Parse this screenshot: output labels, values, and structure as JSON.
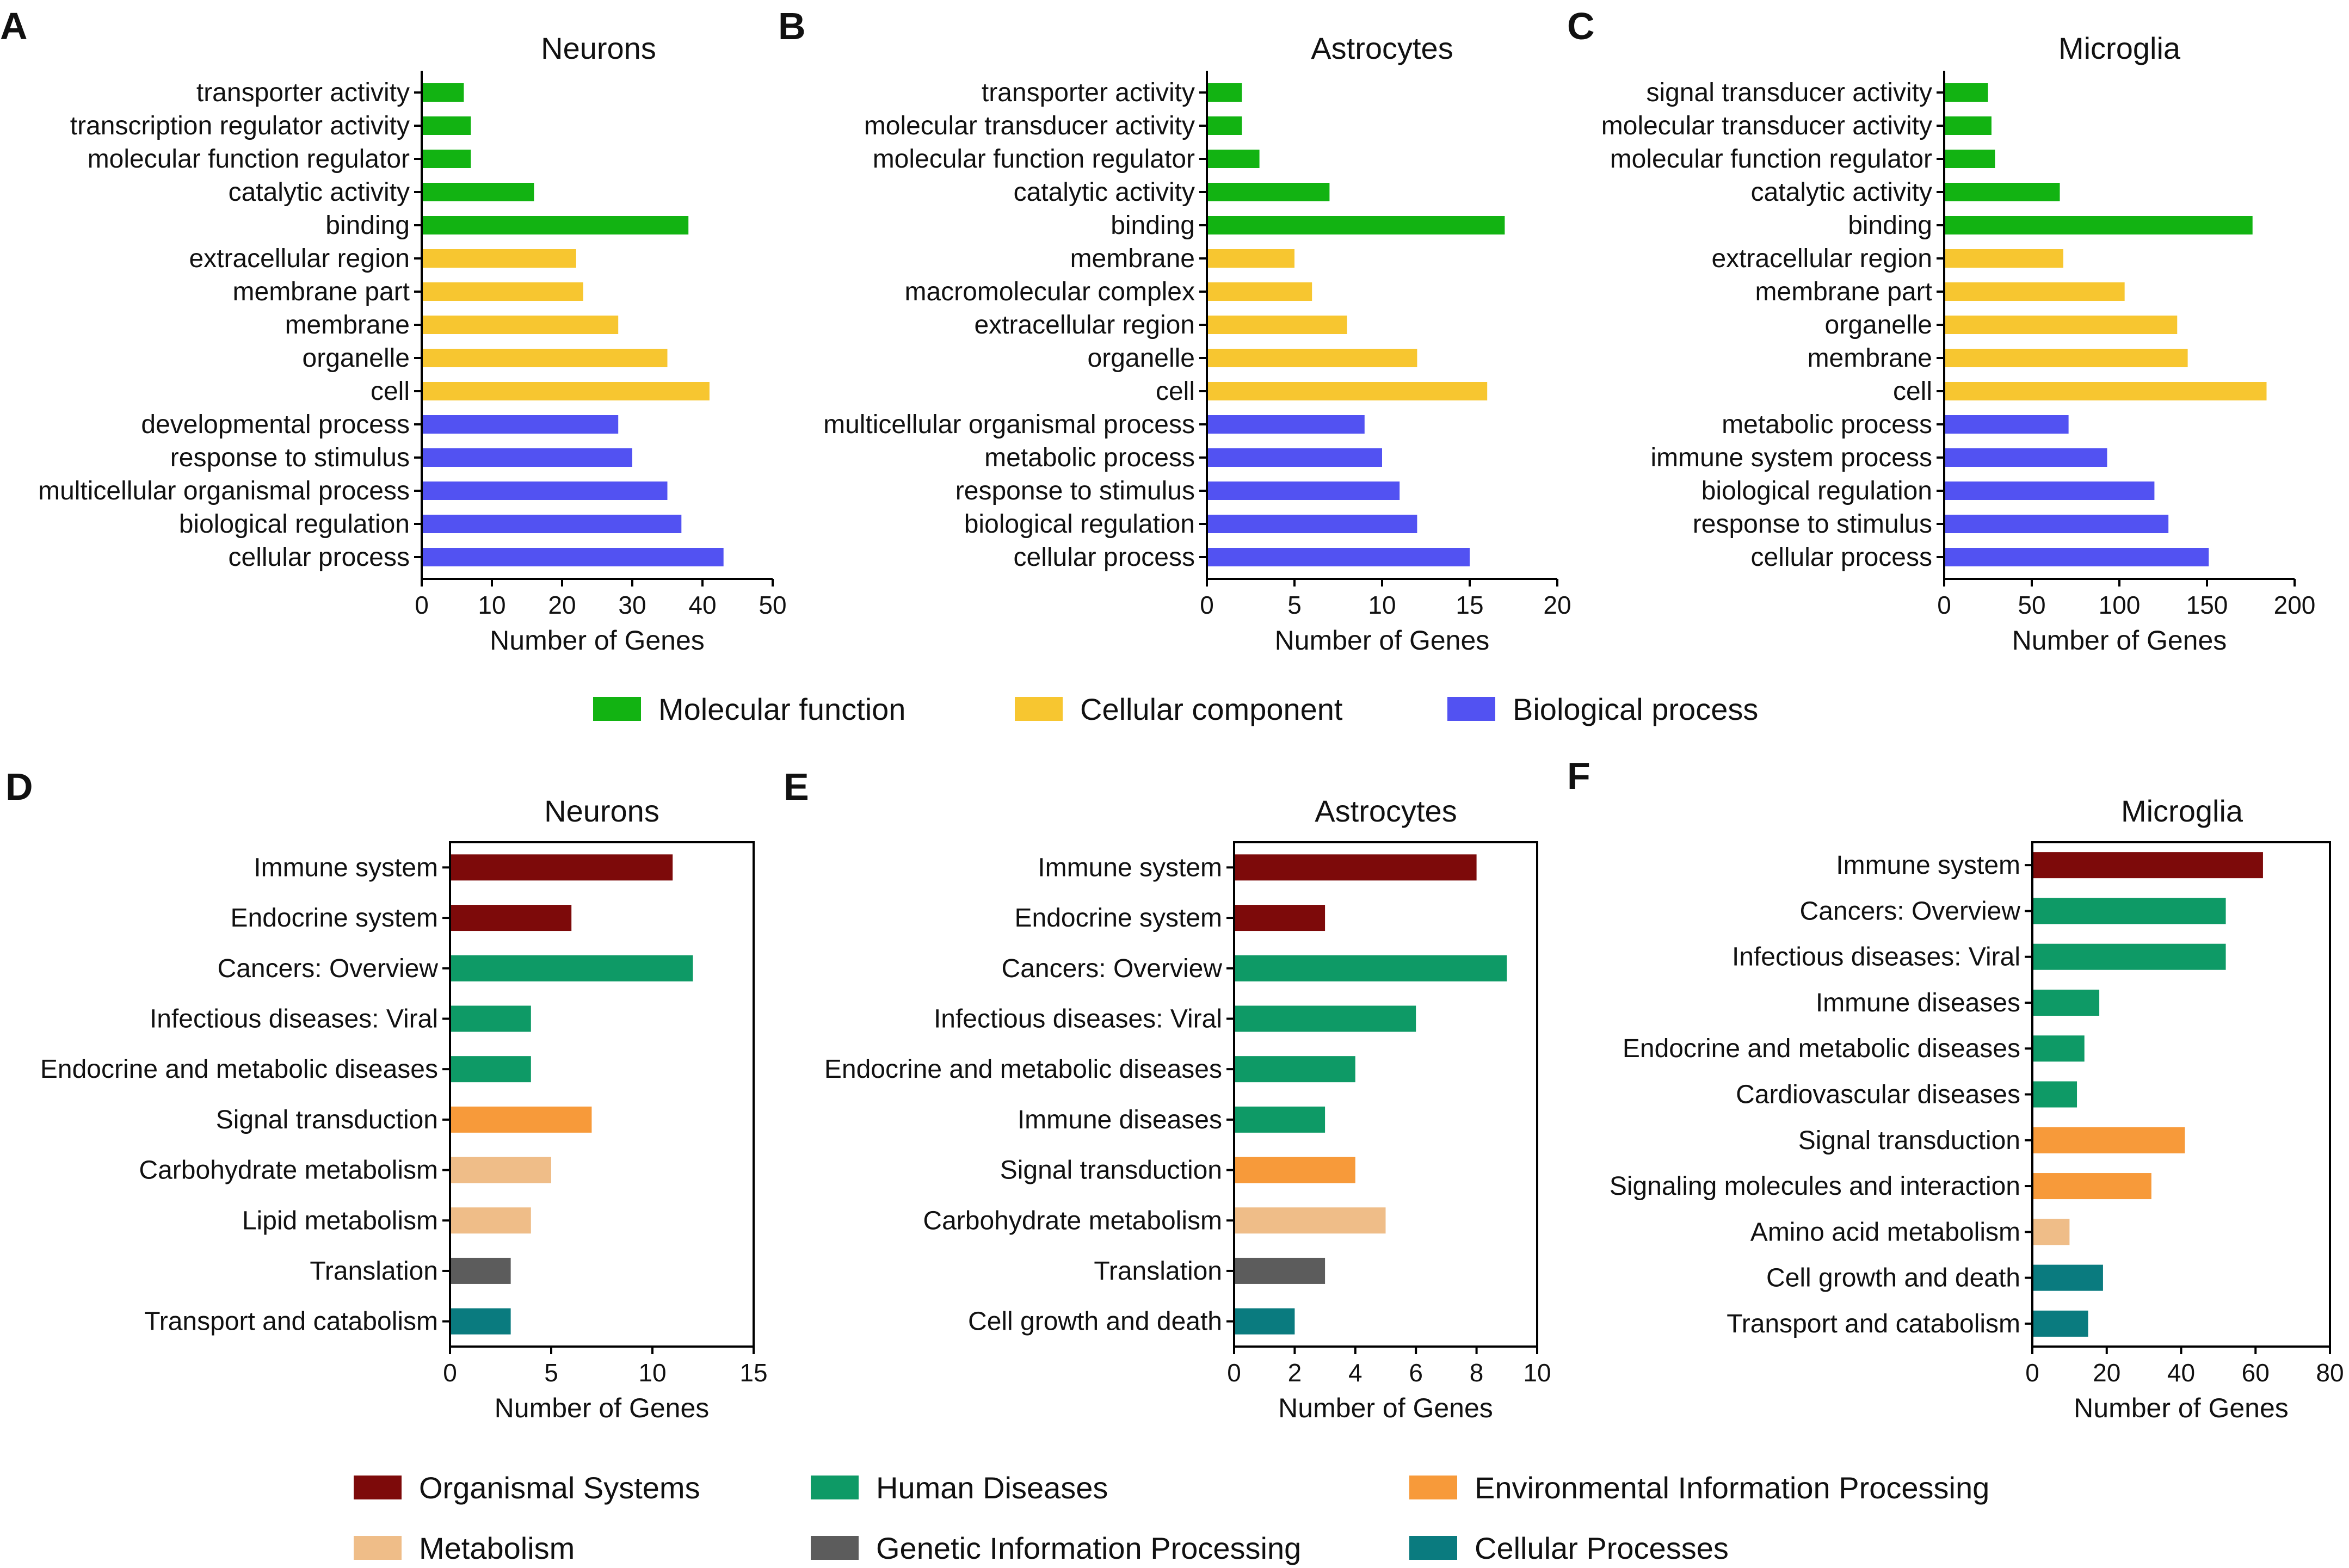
{
  "category_colors": {
    "Molecular function": "#12b312",
    "Cellular component": "#f7c630",
    "Biological process": "#5252f2",
    "Organismal Systems": "#7d0a0a",
    "Human Diseases": "#0e9a66",
    "Environmental Information Processing": "#f79a3a",
    "Metabolism": "#efbd88",
    "Genetic Information Processing": "#5c5c5c",
    "Cellular Processes": "#0a7b7f"
  },
  "legend_go": [
    "Molecular function",
    "Cellular component",
    "Biological process"
  ],
  "legend_kegg_row1": [
    "Organismal Systems",
    "Human Diseases",
    "Environmental Information Processing"
  ],
  "legend_kegg_row2": [
    "Metabolism",
    "Genetic Information Processing",
    "Cellular Processes"
  ],
  "chart_data": [
    {
      "panel": "A",
      "title": "Neurons",
      "type": "bar",
      "orientation": "horizontal",
      "xlabel": "Number of Genes",
      "xlim": [
        0,
        50
      ],
      "xticks": [
        "0",
        "10",
        "20",
        "30",
        "40",
        "50"
      ],
      "categories": [
        "transporter activity",
        "transcription regulator activity",
        "molecular function regulator",
        "catalytic activity",
        "binding",
        "extracellular region",
        "membrane part",
        "membrane",
        "organelle",
        "cell",
        "developmental process",
        "response to stimulus",
        "multicellular organismal process",
        "biological regulation",
        "cellular process"
      ],
      "values": [
        6,
        7,
        7,
        16,
        38,
        22,
        23,
        28,
        35,
        41,
        28,
        30,
        35,
        37,
        43
      ],
      "groups": [
        "Molecular function",
        "Molecular function",
        "Molecular function",
        "Molecular function",
        "Molecular function",
        "Cellular component",
        "Cellular component",
        "Cellular component",
        "Cellular component",
        "Cellular component",
        "Biological process",
        "Biological process",
        "Biological process",
        "Biological process",
        "Biological process"
      ]
    },
    {
      "panel": "B",
      "title": "Astrocytes",
      "type": "bar",
      "orientation": "horizontal",
      "xlabel": "Number of Genes",
      "xlim": [
        0,
        20
      ],
      "xticks": [
        "0",
        "5",
        "10",
        "15",
        "20"
      ],
      "categories": [
        "transporter activity",
        "molecular transducer activity",
        "molecular function regulator",
        "catalytic activity",
        "binding",
        "membrane",
        "macromolecular complex",
        "extracellular region",
        "organelle",
        "cell",
        "multicellular organismal process",
        "metabolic process",
        "response to stimulus",
        "biological regulation",
        "cellular process"
      ],
      "values": [
        2,
        2,
        3,
        7,
        17,
        5,
        6,
        8,
        12,
        16,
        9,
        10,
        11,
        12,
        15
      ],
      "groups": [
        "Molecular function",
        "Molecular function",
        "Molecular function",
        "Molecular function",
        "Molecular function",
        "Cellular component",
        "Cellular component",
        "Cellular component",
        "Cellular component",
        "Cellular component",
        "Biological process",
        "Biological process",
        "Biological process",
        "Biological process",
        "Biological process"
      ]
    },
    {
      "panel": "C",
      "title": "Microglia",
      "type": "bar",
      "orientation": "horizontal",
      "xlabel": "Number of Genes",
      "xlim": [
        0,
        200
      ],
      "xticks": [
        "0",
        "50",
        "100",
        "150",
        "200"
      ],
      "categories": [
        "signal transducer activity",
        "molecular transducer activity",
        "molecular function regulator",
        "catalytic activity",
        "binding",
        "extracellular region",
        "membrane part",
        "organelle",
        "membrane",
        "cell",
        "metabolic process",
        "immune system process",
        "biological regulation",
        "response to stimulus",
        "cellular process"
      ],
      "values": [
        25,
        27,
        29,
        66,
        176,
        68,
        103,
        133,
        139,
        184,
        71,
        93,
        120,
        128,
        151
      ],
      "groups": [
        "Molecular function",
        "Molecular function",
        "Molecular function",
        "Molecular function",
        "Molecular function",
        "Cellular component",
        "Cellular component",
        "Cellular component",
        "Cellular component",
        "Cellular component",
        "Biological process",
        "Biological process",
        "Biological process",
        "Biological process",
        "Biological process"
      ]
    },
    {
      "panel": "D",
      "title": "Neurons",
      "type": "bar",
      "orientation": "horizontal",
      "xlabel": "Number of Genes",
      "xlim": [
        0,
        15
      ],
      "xticks": [
        "0",
        "5",
        "10",
        "15"
      ],
      "categories": [
        "Immune system",
        "Endocrine system",
        "Cancers: Overview",
        "Infectious diseases: Viral",
        "Endocrine and metabolic diseases",
        "Signal transduction",
        "Carbohydrate metabolism",
        "Lipid metabolism",
        "Translation",
        "Transport and catabolism"
      ],
      "values": [
        11,
        6,
        12,
        4,
        4,
        7,
        5,
        4,
        3,
        3
      ],
      "groups": [
        "Organismal Systems",
        "Organismal Systems",
        "Human Diseases",
        "Human Diseases",
        "Human Diseases",
        "Environmental Information Processing",
        "Metabolism",
        "Metabolism",
        "Genetic Information Processing",
        "Cellular Processes"
      ]
    },
    {
      "panel": "E",
      "title": "Astrocytes",
      "type": "bar",
      "orientation": "horizontal",
      "xlabel": "Number of Genes",
      "xlim": [
        0,
        10
      ],
      "xticks": [
        "0",
        "2",
        "4",
        "6",
        "8",
        "10"
      ],
      "categories": [
        "Immune system",
        "Endocrine system",
        "Cancers: Overview",
        "Infectious diseases: Viral",
        "Endocrine and metabolic diseases",
        "Immune diseases",
        "Signal transduction",
        "Carbohydrate metabolism",
        "Translation",
        "Cell growth and death"
      ],
      "values": [
        8,
        3,
        9,
        6,
        4,
        3,
        4,
        5,
        3,
        2
      ],
      "groups": [
        "Organismal Systems",
        "Organismal Systems",
        "Human Diseases",
        "Human Diseases",
        "Human Diseases",
        "Human Diseases",
        "Environmental Information Processing",
        "Metabolism",
        "Genetic Information Processing",
        "Cellular Processes"
      ]
    },
    {
      "panel": "F",
      "title": "Microglia",
      "type": "bar",
      "orientation": "horizontal",
      "xlabel": "Number of Genes",
      "xlim": [
        0,
        80
      ],
      "xticks": [
        "0",
        "20",
        "40",
        "60",
        "80"
      ],
      "categories": [
        "Immune system",
        "Cancers: Overview",
        "Infectious diseases: Viral",
        "Immune diseases",
        "Endocrine and metabolic diseases",
        "Cardiovascular diseases",
        "Signal transduction",
        "Signaling molecules and interaction",
        "Amino acid metabolism",
        "Cell growth and death",
        "Transport and catabolism"
      ],
      "values": [
        62,
        52,
        52,
        18,
        14,
        12,
        41,
        32,
        10,
        19,
        15
      ],
      "groups": [
        "Organismal Systems",
        "Human Diseases",
        "Human Diseases",
        "Human Diseases",
        "Human Diseases",
        "Human Diseases",
        "Environmental Information Processing",
        "Environmental Information Processing",
        "Metabolism",
        "Cellular Processes",
        "Cellular Processes"
      ]
    }
  ]
}
